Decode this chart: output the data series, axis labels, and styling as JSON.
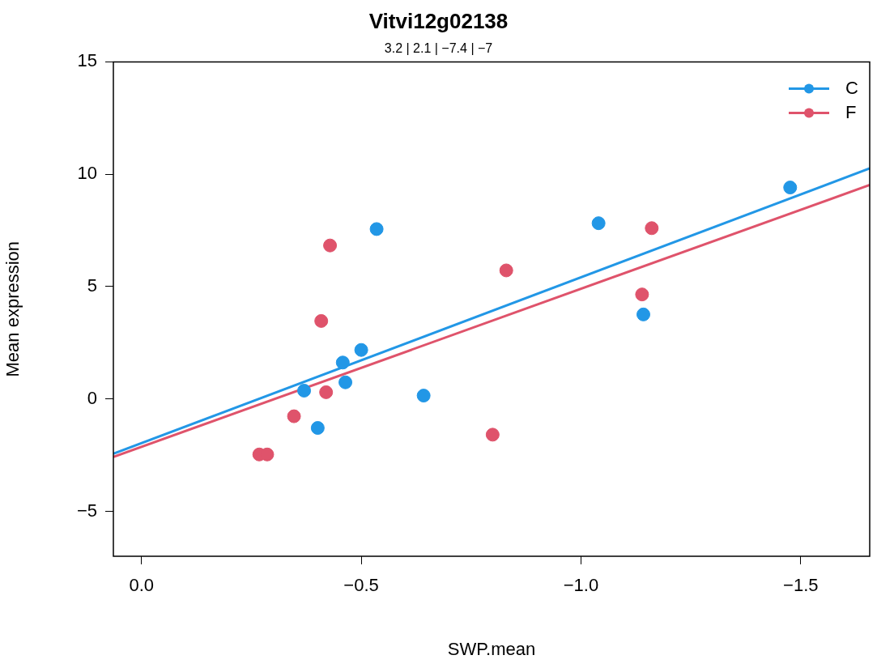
{
  "chart_data": {
    "type": "scatter",
    "title": "Vitvi12g02138",
    "subtitle": "3.2 | 2.1 | −7.4 | −7",
    "xlabel": "SWP.mean",
    "ylabel": "Mean expression",
    "xlim": [
      0.064,
      -1.657
    ],
    "ylim": [
      -7,
      15
    ],
    "xticks": [
      {
        "value": 0,
        "label": "0.0"
      },
      {
        "value": -0.5,
        "label": "−0.5"
      },
      {
        "value": -1,
        "label": "−1.0"
      },
      {
        "value": -1.5,
        "label": "−1.5"
      }
    ],
    "yticks": [
      {
        "value": -5,
        "label": "−5"
      },
      0,
      5,
      10,
      15
    ],
    "grid": false,
    "legend": "top right",
    "marker": "circle",
    "series": [
      {
        "name": "C",
        "color": "#2297e6",
        "x": [
          -0.37,
          -0.401,
          -0.458,
          -0.464,
          -0.5,
          -0.535,
          -0.642,
          -1.04,
          -1.142,
          -1.476
        ],
        "values": [
          0.37,
          -1.29,
          1.62,
          0.74,
          2.18,
          7.56,
          0.15,
          7.82,
          3.76,
          9.41
        ]
      },
      {
        "name": "F",
        "color": "#df536b",
        "x": [
          -0.268,
          -0.286,
          -0.347,
          -0.409,
          -0.42,
          -0.429,
          -0.799,
          -0.83,
          -1.139,
          -1.161
        ],
        "values": [
          -2.47,
          -2.47,
          -0.77,
          3.47,
          0.3,
          6.83,
          -1.59,
          5.72,
          4.65,
          7.6
        ]
      },
      {
        "type": "line",
        "marker": "none",
        "color": "#2297e6",
        "x": [
          0.064,
          -1.657
        ],
        "values": [
          -2.44,
          10.26
        ]
      },
      {
        "type": "line",
        "marker": "none",
        "color": "#df536b",
        "x": [
          0.064,
          -1.657
        ],
        "values": [
          -2.58,
          9.52
        ]
      }
    ]
  }
}
